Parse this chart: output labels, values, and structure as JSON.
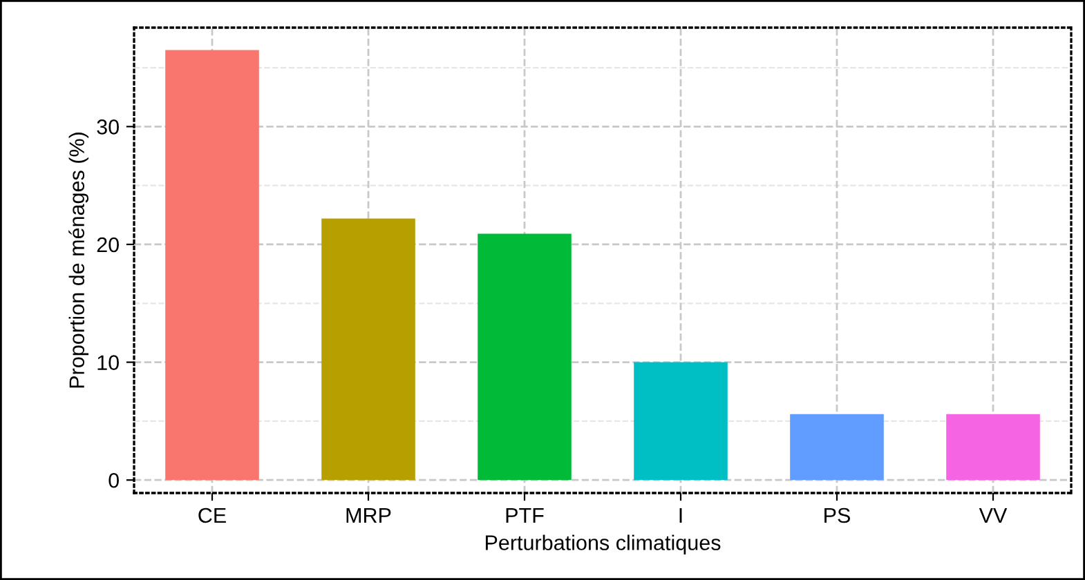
{
  "chart_data": {
    "type": "bar",
    "xlabel": "Perturbations climatiques",
    "ylabel": "Proportion de ménages (%)",
    "categories": [
      "CE",
      "MRP",
      "PTF",
      "I",
      "PS",
      "VV"
    ],
    "values": [
      36.5,
      22.2,
      20.9,
      10.0,
      5.6,
      5.6
    ],
    "colors": [
      "#f8766d",
      "#b79f00",
      "#00ba38",
      "#00bfc4",
      "#619cff",
      "#f564e3"
    ],
    "ylim": [
      -1.1,
      38.4
    ],
    "yticks": [
      0,
      10,
      20,
      30
    ],
    "grid": true
  }
}
